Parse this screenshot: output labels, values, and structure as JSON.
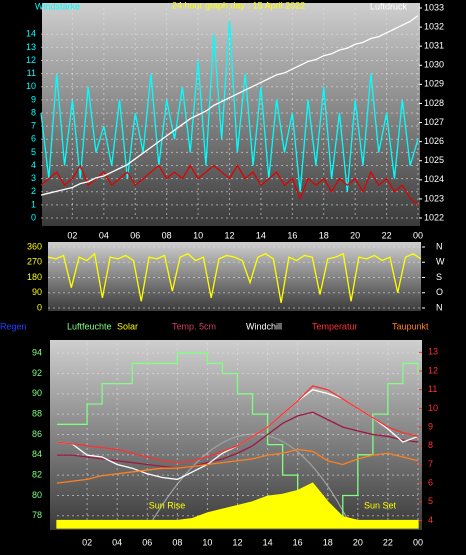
{
  "chart_data": [
    {
      "type": "line",
      "title": "24 hour graph day : 15 April 2022",
      "y_label": "Windstärke",
      "y2_label": "Luftdruck",
      "x": [
        0,
        0.5,
        1,
        1.5,
        2,
        2.5,
        3,
        3.5,
        4,
        4.5,
        5,
        5.5,
        6,
        6.5,
        7,
        7.5,
        8,
        8.5,
        9,
        9.5,
        10,
        10.5,
        11,
        11.5,
        12,
        12.5,
        13,
        13.5,
        14,
        14.5,
        15,
        15.5,
        16,
        16.5,
        17,
        17.5,
        18,
        18.5,
        19,
        19.5,
        20,
        20.5,
        21,
        21.5,
        22,
        22.5,
        23,
        23.5,
        24
      ],
      "xlim": [
        0,
        24
      ],
      "xticks": [
        {
          "value": 2,
          "label": "02"
        },
        {
          "value": 4,
          "label": "04"
        },
        {
          "value": 6,
          "label": "06"
        },
        {
          "value": 8,
          "label": "08"
        },
        10,
        12,
        14,
        16,
        18,
        20,
        22,
        {
          "value": 24,
          "label": "00"
        }
      ],
      "ylim": [
        0,
        16
      ],
      "yticks": [
        0,
        1,
        2,
        3,
        4,
        5,
        6,
        7,
        8,
        9,
        10,
        11,
        12,
        13,
        14
      ],
      "y2lim": [
        1022,
        1033
      ],
      "y2ticks": [
        1022,
        1023,
        1024,
        1025,
        1026,
        1027,
        1028,
        1029,
        1030,
        1031,
        1032,
        1033
      ],
      "grid": true,
      "series": [
        {
          "color": "#00ffff",
          "values": [
            8,
            3,
            11,
            4,
            9,
            3,
            10,
            5,
            7,
            4,
            9,
            3,
            8,
            5,
            11,
            4,
            9,
            6,
            10,
            5,
            12,
            4,
            14,
            6,
            15,
            5,
            11,
            4,
            10,
            3,
            9,
            5,
            8,
            2,
            9,
            4,
            10,
            3,
            8,
            2,
            9,
            4,
            11,
            5,
            8,
            3,
            9,
            4,
            6
          ]
        },
        {
          "color": "#e00000",
          "values": [
            2.5,
            3,
            3.5,
            2.5,
            3,
            4,
            2.5,
            3,
            3.5,
            2.5,
            3,
            3.5,
            2.5,
            3,
            3.5,
            4,
            3,
            3.5,
            3,
            4,
            3,
            3.5,
            4,
            3.5,
            3,
            4,
            3,
            3.5,
            2.5,
            3,
            3.5,
            2.5,
            3,
            1.5,
            3,
            2.5,
            3,
            2,
            3,
            2.5,
            3,
            2,
            3.5,
            2.5,
            3,
            2,
            2.5,
            1.5,
            1
          ]
        },
        {
          "color": "#ffffff",
          "axis": "y2",
          "values": [
            1023.2,
            1023.3,
            1023.4,
            1023.5,
            1023.6,
            1023.8,
            1023.9,
            1024.1,
            1024.2,
            1024.4,
            1024.6,
            1024.8,
            1025.1,
            1025.4,
            1025.7,
            1026.0,
            1026.3,
            1026.6,
            1026.9,
            1027.2,
            1027.4,
            1027.6,
            1027.9,
            1028.1,
            1028.3,
            1028.5,
            1028.7,
            1028.9,
            1029.1,
            1029.3,
            1029.5,
            1029.6,
            1029.8,
            1030.0,
            1030.2,
            1030.3,
            1030.5,
            1030.6,
            1030.8,
            1030.9,
            1031.1,
            1031.2,
            1031.4,
            1031.5,
            1031.7,
            1031.9,
            1032.1,
            1032.3,
            1032.6
          ]
        }
      ]
    },
    {
      "type": "line",
      "x": [
        0,
        0.5,
        1,
        1.5,
        2,
        2.5,
        3,
        3.5,
        4,
        4.5,
        5,
        5.5,
        6,
        6.5,
        7,
        7.5,
        8,
        8.5,
        9,
        9.5,
        10,
        10.5,
        11,
        11.5,
        12,
        12.5,
        13,
        13.5,
        14,
        14.5,
        15,
        15.5,
        16,
        16.5,
        17,
        17.5,
        18,
        18.5,
        19,
        19.5,
        20,
        20.5,
        21,
        21.5,
        22,
        22.5,
        23,
        23.5,
        24
      ],
      "xlim": [
        0,
        24
      ],
      "ylim": [
        0,
        360
      ],
      "yticks": [
        0,
        90,
        180,
        270,
        360
      ],
      "y2lim": [
        0,
        360
      ],
      "y2ticks": [
        {
          "value": 360,
          "label": "N"
        },
        {
          "value": 270,
          "label": "W"
        },
        {
          "value": 180,
          "label": "S"
        },
        {
          "value": 90,
          "label": "O"
        },
        {
          "value": 0,
          "label": "N"
        }
      ],
      "grid": true,
      "series": [
        {
          "color": "#ffff00",
          "values": [
            300,
            290,
            310,
            120,
            300,
            280,
            320,
            60,
            300,
            290,
            310,
            280,
            40,
            300,
            290,
            310,
            100,
            300,
            320,
            280,
            300,
            60,
            290,
            310,
            300,
            280,
            150,
            300,
            320,
            290,
            30,
            300,
            280,
            310,
            300,
            80,
            290,
            300,
            320,
            40,
            300,
            290,
            310,
            280,
            300,
            90,
            300,
            320,
            290
          ]
        }
      ]
    },
    {
      "type": "line",
      "x": [
        0,
        1,
        2,
        3,
        4,
        5,
        6,
        7,
        8,
        9,
        10,
        11,
        12,
        13,
        14,
        15,
        16,
        17,
        18,
        19,
        20,
        21,
        22,
        23,
        24
      ],
      "xlim": [
        0,
        24
      ],
      "xticks": [
        {
          "value": 2,
          "label": "02"
        },
        {
          "value": 4,
          "label": "04"
        },
        {
          "value": 6,
          "label": "06"
        },
        {
          "value": 8,
          "label": "08"
        },
        10,
        12,
        14,
        16,
        18,
        20,
        22,
        {
          "value": 24,
          "label": "00"
        }
      ],
      "ylim": [
        76.8,
        95
      ],
      "yticks": [
        78,
        80,
        82,
        84,
        86,
        88,
        90,
        92,
        94
      ],
      "y2lim": [
        3.6,
        13.5
      ],
      "y2ticks": [
        4,
        5,
        6,
        7,
        8,
        9,
        10,
        11,
        12,
        13
      ],
      "grid": true,
      "annotations": [
        "Sun Rise",
        "Sun Set"
      ],
      "series": [
        {
          "name": "Regen",
          "color": "#2040ff",
          "values": [
            null,
            null,
            null,
            null,
            null,
            null,
            null,
            null,
            null,
            null,
            null,
            null,
            null,
            null,
            null,
            null,
            null,
            null,
            null,
            null,
            null,
            null,
            null,
            null,
            null
          ]
        },
        {
          "name": "Luftfeuchte",
          "color": "#80ff80",
          "step": true,
          "values": [
            87,
            87,
            89,
            91,
            91,
            93,
            93,
            93,
            94,
            94,
            93,
            92,
            90,
            88,
            85,
            82,
            80,
            78,
            78,
            80,
            84,
            88,
            91,
            93,
            92
          ]
        },
        {
          "name": "Solar",
          "color": "#ffff00",
          "axis": "y2",
          "area": true,
          "values": [
            4,
            4,
            4,
            4,
            4,
            4,
            4,
            4,
            4,
            4.1,
            4.4,
            4.6,
            4.8,
            5.0,
            5.3,
            5.4,
            5.6,
            6.0,
            5.0,
            4.2,
            4,
            4,
            4,
            4,
            4
          ]
        },
        {
          "name": "Temp. 5cm",
          "color": "#a01840",
          "axis": "y2",
          "values": [
            7.5,
            7.5,
            7.4,
            7.3,
            7.2,
            7.1,
            7.0,
            6.9,
            6.8,
            6.9,
            7.1,
            7.3,
            7.6,
            8.0,
            8.6,
            9.2,
            9.6,
            9.8,
            9.4,
            9.0,
            8.8,
            8.6,
            8.5,
            8.3,
            8.2
          ]
        },
        {
          "name": "Windchill",
          "color": "#ffffff",
          "axis": "y2",
          "values": [
            8.2,
            8.1,
            7.5,
            7.4,
            7.0,
            6.8,
            6.5,
            6.3,
            6.2,
            6.6,
            7.0,
            7.6,
            8.0,
            8.5,
            9.0,
            9.7,
            10.4,
            11.0,
            10.8,
            10.5,
            10.0,
            9.5,
            8.9,
            8.2,
            8.5
          ]
        },
        {
          "name": "Temperatur",
          "color": "#ff3030",
          "axis": "y2",
          "values": [
            8.2,
            8.1,
            8.0,
            7.9,
            7.8,
            7.6,
            7.4,
            7.2,
            7.1,
            7.2,
            7.4,
            7.7,
            8.0,
            8.5,
            9.0,
            9.7,
            10.4,
            11.2,
            11.0,
            10.5,
            10.0,
            9.5,
            9.0,
            8.7,
            8.5
          ]
        },
        {
          "name": "Taupunkt",
          "color": "#ff8020",
          "axis": "y2",
          "values": [
            6.0,
            6.1,
            6.2,
            6.4,
            6.5,
            6.6,
            6.7,
            6.8,
            6.8,
            6.9,
            7.0,
            7.1,
            7.2,
            7.3,
            7.5,
            7.6,
            7.8,
            7.7,
            7.2,
            7.0,
            7.3,
            7.5,
            7.6,
            7.4,
            7.2
          ]
        }
      ]
    }
  ]
}
